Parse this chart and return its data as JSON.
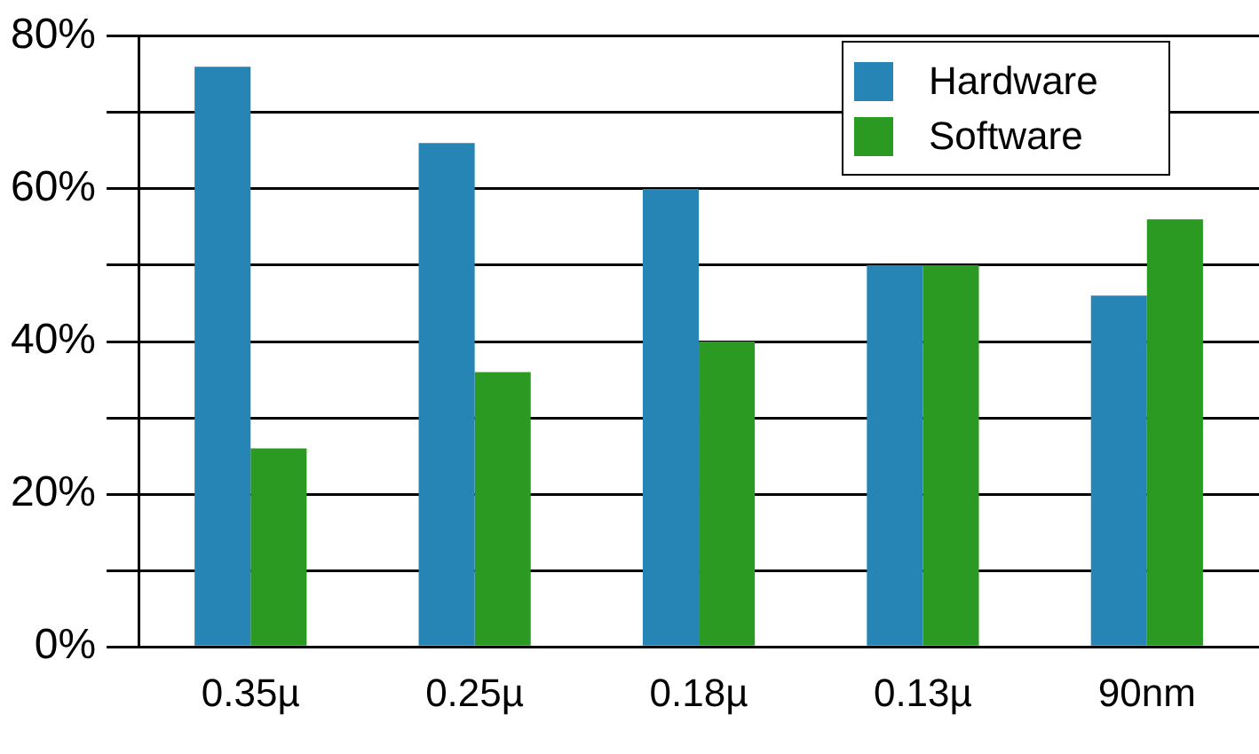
{
  "chart_data": {
    "type": "bar",
    "categories": [
      "0.35µ",
      "0.25µ",
      "0.18µ",
      "0.13µ",
      "90nm"
    ],
    "series": [
      {
        "name": "Hardware",
        "color": "#2685b5",
        "values": [
          76,
          66,
          60,
          50,
          46
        ]
      },
      {
        "name": "Software",
        "color": "#2a9a22",
        "values": [
          26,
          36,
          40,
          50,
          56
        ]
      }
    ],
    "ylim": [
      0,
      80
    ],
    "yticks": [
      {
        "value": 0,
        "label": "0%"
      },
      {
        "value": 10,
        "label": null
      },
      {
        "value": 20,
        "label": "20%"
      },
      {
        "value": 30,
        "label": null
      },
      {
        "value": 40,
        "label": "40%"
      },
      {
        "value": 50,
        "label": null
      },
      {
        "value": 60,
        "label": "60%"
      },
      {
        "value": 70,
        "label": null
      },
      {
        "value": 80,
        "label": "80%"
      }
    ],
    "grid": "y",
    "legend": "top right"
  }
}
